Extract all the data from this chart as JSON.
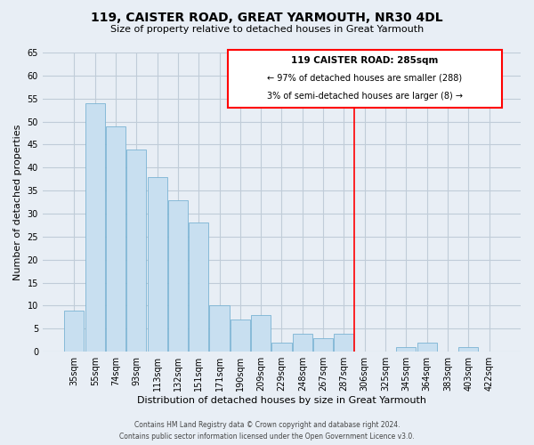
{
  "title": "119, CAISTER ROAD, GREAT YARMOUTH, NR30 4DL",
  "subtitle": "Size of property relative to detached houses in Great Yarmouth",
  "xlabel": "Distribution of detached houses by size in Great Yarmouth",
  "ylabel": "Number of detached properties",
  "footer_line1": "Contains HM Land Registry data © Crown copyright and database right 2024.",
  "footer_line2": "Contains public sector information licensed under the Open Government Licence v3.0.",
  "bar_labels": [
    "35sqm",
    "55sqm",
    "74sqm",
    "93sqm",
    "113sqm",
    "132sqm",
    "151sqm",
    "171sqm",
    "190sqm",
    "209sqm",
    "229sqm",
    "248sqm",
    "267sqm",
    "287sqm",
    "306sqm",
    "325sqm",
    "345sqm",
    "364sqm",
    "383sqm",
    "403sqm",
    "422sqm"
  ],
  "bar_values": [
    9,
    54,
    49,
    44,
    38,
    33,
    28,
    10,
    7,
    8,
    2,
    4,
    3,
    4,
    0,
    0,
    1,
    2,
    0,
    1,
    0
  ],
  "bar_color": "#c8dff0",
  "bar_edge_color": "#7ab3d3",
  "red_line_index": 13,
  "annotation_title": "119 CAISTER ROAD: 285sqm",
  "annotation_line1": "← 97% of detached houses are smaller (288)",
  "annotation_line2": "3% of semi-detached houses are larger (8) →",
  "ylim": [
    0,
    65
  ],
  "yticks": [
    0,
    5,
    10,
    15,
    20,
    25,
    30,
    35,
    40,
    45,
    50,
    55,
    60,
    65
  ],
  "background_color": "#e8eef5",
  "plot_bg_color": "#e8eef5",
  "grid_color": "#c0ccd8",
  "title_fontsize": 10,
  "subtitle_fontsize": 8,
  "axis_label_fontsize": 8,
  "tick_fontsize": 7
}
